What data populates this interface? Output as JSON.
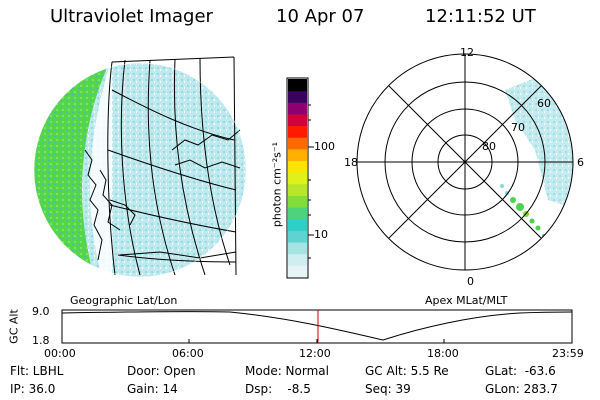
{
  "header": {
    "title": "Ultraviolet Imager",
    "date": "10 Apr 07",
    "time": "12:11:52 UT"
  },
  "left_panel": {
    "caption": "Geographic Lat/Lon"
  },
  "right_panel": {
    "caption": "Apex MLat/MLT",
    "mlt_labels": [
      "12",
      "18",
      "6",
      "0"
    ],
    "lat_labels": [
      "80",
      "70",
      "60"
    ]
  },
  "colorbar": {
    "unit_label": "photon cm⁻²s⁻¹",
    "ticks": [
      "100",
      "10"
    ],
    "colors": [
      "#e6f4f8",
      "#cfeef0",
      "#a6e4e4",
      "#5fd2d2",
      "#2ecfc8",
      "#4ed37a",
      "#80dd3a",
      "#b8e62a",
      "#dff01a",
      "#ffe400",
      "#ffb000",
      "#ff6a00",
      "#ff1a00",
      "#d0003a",
      "#8e0070",
      "#3a0060",
      "#000000"
    ]
  },
  "altitude_plot": {
    "ylabel": "GC Alt",
    "ymax": "9.0",
    "ymin": "1.8",
    "xticks": [
      "00:00",
      "06:00",
      "12:00",
      "18:00",
      "23:59"
    ],
    "current_time_marker_color": "#cc0000"
  },
  "status": {
    "flt": "Flt: LBHL",
    "ip": "IP: 36.0",
    "door": "Door: Open",
    "gain": "Gain: 14",
    "mode": "Mode: Normal",
    "dsp": "Dsp:    -8.5",
    "gc_alt": "GC Alt: 5.5 Re",
    "seq": "Seq: 39",
    "glat": "GLat:  -63.6",
    "glon": "GLon: 283.7"
  },
  "colors": {
    "green": "#4bd34b",
    "cyan": "#7fdcdc",
    "pale": "#d8f0f2"
  }
}
